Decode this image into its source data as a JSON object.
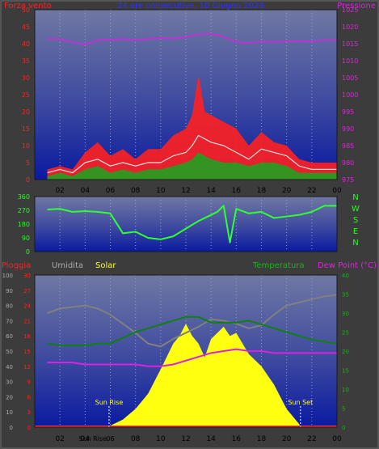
{
  "chart_data": [
    {
      "type": "line",
      "panel": "wind-pressure",
      "title": "24 ore consecutive, 10 Giugno 2024",
      "left_axis_title": "Forza vento",
      "right_axis_title": "Pressione",
      "x_ticks": [
        "02",
        "04",
        "06",
        "08",
        "10",
        "12",
        "14",
        "16",
        "18",
        "20",
        "22",
        "00"
      ],
      "ylim_left": [
        0,
        50
      ],
      "yticks_left": [
        "0",
        "5",
        "10",
        "15",
        "20",
        "25",
        "30",
        "35",
        "40",
        "45",
        "50"
      ],
      "ylim_right": [
        975,
        1025
      ],
      "yticks_right": [
        "975",
        "980",
        "985",
        "990",
        "995",
        "1000",
        "1005",
        "1010",
        "1015",
        "1020",
        "1025"
      ],
      "grid": true,
      "series": [
        {
          "axis": "right",
          "color": "#e020e0",
          "x": [
            1,
            2,
            3,
            4,
            5,
            6,
            7,
            8,
            9,
            10,
            11,
            12,
            13,
            14,
            15,
            16,
            17,
            18,
            19,
            20,
            21,
            22,
            23,
            24
          ],
          "y": [
            1016.4,
            1016.4,
            1015.4,
            1014.7,
            1016.0,
            1016.2,
            1016.4,
            1016.2,
            1016.4,
            1016.6,
            1016.5,
            1017.0,
            1017.8,
            1017.9,
            1017.0,
            1015.5,
            1015.2,
            1015.6,
            1015.5,
            1015.6,
            1015.8,
            1015.6,
            1016.0,
            1016.0
          ]
        },
        {
          "axis": "left",
          "color": "#ff2020",
          "x": [
            1,
            2,
            3,
            4,
            5,
            6,
            7,
            8,
            9,
            10,
            11,
            12,
            12.5,
            13,
            13.5,
            14,
            15,
            16,
            17,
            18,
            19,
            20,
            21,
            22,
            23,
            24
          ],
          "y": [
            3,
            4,
            3,
            8,
            11,
            7,
            9,
            6,
            9,
            9,
            13,
            15,
            19,
            31,
            20,
            19,
            17,
            15,
            10,
            14,
            11,
            10,
            6,
            5,
            5,
            5
          ]
        },
        {
          "axis": "left",
          "color": "#e0e0e0",
          "x": [
            1,
            2,
            3,
            4,
            5,
            6,
            7,
            8,
            9,
            10,
            11,
            12,
            12.5,
            13,
            13.5,
            14,
            15,
            16,
            17,
            18,
            19,
            20,
            21,
            22,
            23,
            24
          ],
          "y": [
            2,
            3,
            2,
            5,
            6,
            4,
            5,
            4,
            5,
            5,
            7,
            8,
            10,
            13,
            12,
            11,
            10,
            8,
            6,
            9,
            8,
            7,
            4,
            3,
            3,
            3
          ]
        },
        {
          "axis": "left",
          "color": "#20a020",
          "x": [
            1,
            2,
            3,
            4,
            5,
            6,
            7,
            8,
            9,
            10,
            11,
            12,
            12.5,
            13,
            13.5,
            14,
            15,
            16,
            17,
            18,
            19,
            20,
            21,
            22,
            23,
            24
          ],
          "y": [
            1,
            2,
            1,
            3,
            4,
            2,
            3,
            2,
            3,
            3,
            4,
            5,
            6,
            8,
            7,
            6,
            5,
            5,
            4,
            5,
            5,
            4,
            2,
            2,
            2,
            2
          ]
        }
      ]
    },
    {
      "type": "line",
      "panel": "wind-direction",
      "right_letters": [
        "N",
        "W",
        "S",
        "E",
        "N"
      ],
      "x_ticks": [],
      "ylim": [
        0,
        360
      ],
      "yticks": [
        "0",
        "90",
        "180",
        "270",
        "360"
      ],
      "grid": true,
      "series": [
        {
          "color": "#30ff30",
          "x": [
            1,
            2,
            3,
            4,
            5,
            6,
            7,
            8,
            9,
            10,
            11,
            12,
            13,
            14,
            14.5,
            15,
            15.5,
            16,
            17,
            18,
            19,
            20,
            21,
            22,
            23,
            24
          ],
          "y": [
            275,
            280,
            260,
            265,
            260,
            250,
            120,
            130,
            90,
            80,
            100,
            150,
            200,
            240,
            260,
            300,
            60,
            280,
            250,
            260,
            220,
            230,
            240,
            260,
            300,
            300
          ]
        }
      ]
    },
    {
      "type": "line",
      "panel": "rain-humidity-solar-temperature",
      "labels_top": [
        "Pioggia",
        "Umidita",
        "Solar",
        "Temperatura",
        "Dew Point (°C)"
      ],
      "x_ticks": [
        "02",
        "04",
        "06",
        "08",
        "10",
        "12",
        "14",
        "16",
        "18",
        "20",
        "22",
        "00"
      ],
      "x_ticks_extra": [
        "Sun Rise",
        "Sun Set",
        "Sun Rise"
      ],
      "yticks_humidity": [
        "0",
        "10",
        "20",
        "30",
        "40",
        "50",
        "60",
        "70",
        "80",
        "90",
        "100"
      ],
      "yticks_rain": [
        "0",
        "3",
        "6",
        "9",
        "12",
        "15",
        "18",
        "21",
        "24",
        "27",
        "30"
      ],
      "yticks_temp": [
        "0",
        "5",
        "10",
        "15",
        "20",
        "25",
        "30",
        "35",
        "40"
      ],
      "sunrise_hour": 5.9,
      "sunset_hour": 21.1,
      "grid": true,
      "series": [
        {
          "name": "Umidita",
          "axis": "humidity",
          "color": "#808080",
          "x": [
            1,
            2,
            3,
            4,
            5,
            6,
            7,
            8,
            9,
            10,
            11,
            12,
            13,
            14,
            15,
            16,
            17,
            18,
            19,
            20,
            21,
            22,
            23,
            24
          ],
          "y": [
            75,
            78,
            79,
            80,
            78,
            74,
            68,
            62,
            55,
            53,
            58,
            62,
            66,
            71,
            70,
            68,
            65,
            67,
            74,
            80,
            82,
            84,
            86,
            87
          ]
        },
        {
          "name": "Temperatura",
          "axis": "temp",
          "color": "#108010",
          "x": [
            1,
            2,
            3,
            4,
            5,
            6,
            7,
            8,
            9,
            10,
            11,
            12,
            13,
            14,
            15,
            16,
            17,
            18,
            19,
            20,
            21,
            22,
            23,
            24
          ],
          "y": [
            22,
            21.5,
            21.5,
            21.5,
            22,
            22,
            23.5,
            25,
            26,
            27,
            28,
            29,
            29,
            27.5,
            27.5,
            27.5,
            28,
            27,
            26,
            25,
            24,
            23,
            22.5,
            22
          ]
        },
        {
          "name": "Dew Point",
          "axis": "temp",
          "color": "#e020e0",
          "x": [
            1,
            2,
            3,
            4,
            5,
            6,
            7,
            8,
            9,
            10,
            11,
            12,
            13,
            14,
            15,
            16,
            17,
            18,
            19,
            20,
            21,
            22,
            23,
            24
          ],
          "y": [
            17,
            17,
            17,
            16.5,
            16.5,
            16.5,
            16.5,
            16.5,
            16,
            16,
            16.5,
            17.5,
            18.5,
            19.5,
            20,
            20.5,
            20,
            20,
            19.5,
            19.5,
            19.5,
            19.5,
            19.5,
            19.5
          ]
        },
        {
          "name": "Solar",
          "axis": "humidity",
          "color": "#ffff10",
          "type": "area",
          "x": [
            1,
            2,
            3,
            4,
            5,
            5.9,
            6,
            7,
            8,
            9,
            10,
            11,
            11.5,
            12,
            12.5,
            13,
            13.5,
            14,
            14.5,
            15,
            15.5,
            16,
            16.5,
            17,
            18,
            19,
            20,
            21,
            21.1,
            22,
            23,
            24
          ],
          "y": [
            0,
            0,
            0,
            0,
            0,
            0,
            1,
            5,
            12,
            22,
            38,
            55,
            60,
            68,
            60,
            55,
            46,
            58,
            62,
            66,
            60,
            62,
            55,
            48,
            40,
            28,
            12,
            2,
            0,
            0,
            0,
            0
          ]
        }
      ]
    }
  ]
}
